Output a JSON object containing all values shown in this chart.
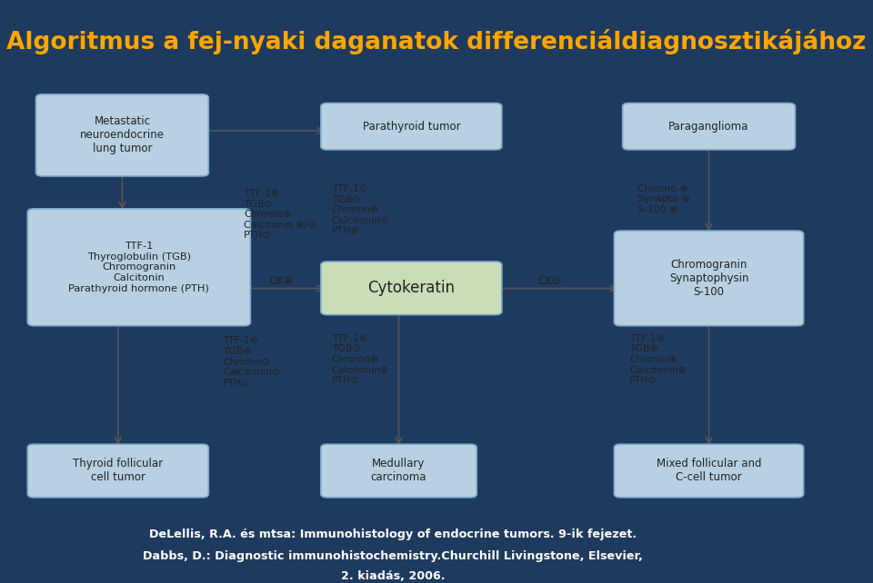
{
  "title": "Algoritmus a fej-nyaki daganatok differenciáldiagnosztikájához",
  "title_color": "#FFA500",
  "title_bg": "#1e3a5f",
  "footer_bg": "#2e8b7a",
  "footer_text1": "DeLellis, R.A. és mtsa: Immunohistology of endocrine tumors. 9-ik fejezet.",
  "footer_text2": "Dabbs, D.: Diagnostic immunohistochemistry.Churchill Livingstone, Elsevier,",
  "footer_text3": "2. kiadás, 2006.",
  "diagram_bg": "#cddce8",
  "box_blue_light": "#b8d0e2",
  "box_green_light": "#c8ddb8",
  "box_border": "#7aaac8",
  "arrow_color": "#555555",
  "text_color": "#222222"
}
